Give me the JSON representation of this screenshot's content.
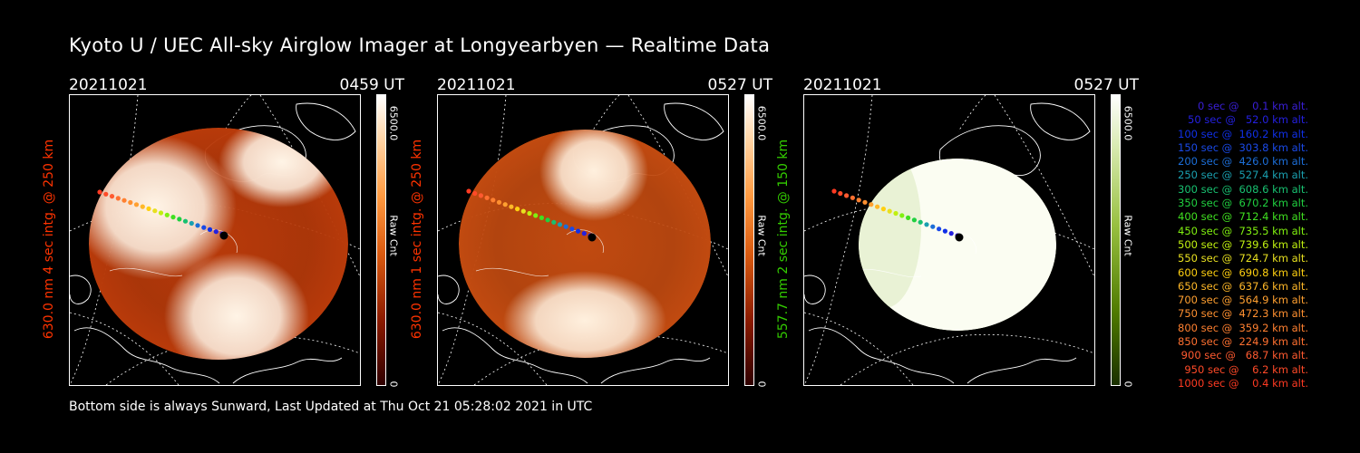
{
  "title": "Kyoto U / UEC All-sky Airglow Imager at Longyearbyen — Realtime Data",
  "footer": "Bottom side is always Sunward, Last Updated at Thu Oct 21 05:28:02 2021 in UTC",
  "panels": [
    {
      "date": "20211021",
      "time": "0459 UT",
      "ylabel": "630.0 nm 4 sec intg. @ 250 km",
      "ylabel_color": "#ff3300",
      "colorbar_max": "6500.0",
      "colorbar_min": "0",
      "colorbar_unit": "Raw Cnt",
      "colormap": "red",
      "low_color": "#b83a0a",
      "high_color": "#fff4e6"
    },
    {
      "date": "20211021",
      "time": "0527 UT",
      "ylabel": "630.0 nm 1 sec intg. @ 250 km",
      "ylabel_color": "#ff3300",
      "colorbar_max": "6500.0",
      "colorbar_min": "0",
      "colorbar_unit": "Raw Cnt",
      "colormap": "red",
      "low_color": "#c14a10",
      "high_color": "#fff0de"
    },
    {
      "date": "20211021",
      "time": "0527 UT",
      "ylabel": "557.7 nm 2 sec intg. @ 150 km",
      "ylabel_color": "#33cc00",
      "colorbar_max": "6500.0",
      "colorbar_min": "0",
      "colorbar_unit": "Raw Cnt",
      "colormap": "green",
      "low_color": "#d8e8b8",
      "high_color": "#fbfdf2"
    }
  ],
  "legend": [
    {
      "text": "   0 sec @    0.1 km alt.",
      "color": "#3a1fd8"
    },
    {
      "text": "  50 sec @   52.0 km alt.",
      "color": "#2420e0"
    },
    {
      "text": " 100 sec @  160.2 km alt.",
      "color": "#1030e8"
    },
    {
      "text": " 150 sec @  303.8 km alt.",
      "color": "#1a4ae8"
    },
    {
      "text": " 200 sec @  426.0 km alt.",
      "color": "#1c6ed8"
    },
    {
      "text": " 250 sec @  527.4 km alt.",
      "color": "#1aa0b0"
    },
    {
      "text": " 300 sec @  608.6 km alt.",
      "color": "#18c070"
    },
    {
      "text": " 350 sec @  670.2 km alt.",
      "color": "#20d040"
    },
    {
      "text": " 400 sec @  712.4 km alt.",
      "color": "#40e020"
    },
    {
      "text": " 450 sec @  735.5 km alt.",
      "color": "#80f010"
    },
    {
      "text": " 500 sec @  739.6 km alt.",
      "color": "#c0f010"
    },
    {
      "text": " 550 sec @  724.7 km alt.",
      "color": "#e8e020"
    },
    {
      "text": " 600 sec @  690.8 km alt.",
      "color": "#ffd010"
    },
    {
      "text": " 650 sec @  637.6 km alt.",
      "color": "#ffb828"
    },
    {
      "text": " 700 sec @  564.9 km alt.",
      "color": "#ffa030"
    },
    {
      "text": " 750 sec @  472.3 km alt.",
      "color": "#ff9030"
    },
    {
      "text": " 800 sec @  359.2 km alt.",
      "color": "#ff8030"
    },
    {
      "text": " 850 sec @  224.9 km alt.",
      "color": "#ff7030"
    },
    {
      "text": " 900 sec @   68.7 km alt.",
      "color": "#ff5a30"
    },
    {
      "text": " 950 sec @    6.2 km alt.",
      "color": "#ff4a28"
    },
    {
      "text": "1000 sec @    0.4 km alt.",
      "color": "#ff3a22"
    }
  ]
}
